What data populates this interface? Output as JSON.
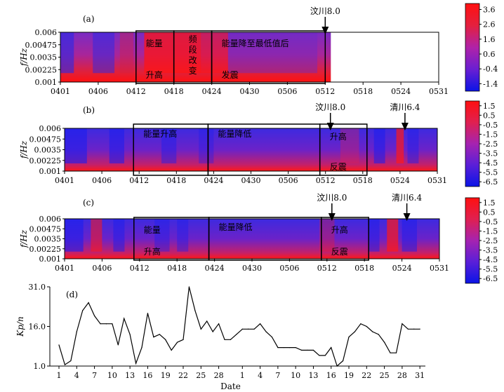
{
  "chart_data": [
    {
      "type": "heatmap",
      "panel_label": "(a)",
      "ylabel": "f/Hz",
      "yticks": [
        "0.006",
        "0.00475",
        "0.0035",
        "0.00225",
        "0.001"
      ],
      "xticks": [
        "0401",
        "0406",
        "0412",
        "0418",
        "0424",
        "0430",
        "0506",
        "0512",
        "0518",
        "0524",
        "0531"
      ],
      "colorbar": {
        "ticks": [
          "3.6",
          "2.6",
          "1.6",
          "0.6",
          "-0.4",
          "-1.4"
        ],
        "min": -1.9,
        "max": 4.0,
        "colors": [
          "#0a14e6",
          "#6a1fd2",
          "#b022a8",
          "#e4203e",
          "#ff1010"
        ]
      },
      "data_end_tick": "0512",
      "boxes": [
        {
          "from": "0412",
          "to": "0418",
          "lines": [
            "能量",
            "升高"
          ]
        },
        {
          "from": "0418",
          "to": "0424",
          "lines": [
            "频",
            "段",
            "改",
            "变"
          ]
        },
        {
          "from": "0424",
          "to": "0512",
          "lines": [
            "能量降至最低值后",
            "发震"
          ]
        }
      ],
      "annotations": [
        {
          "text": "汶川8.0",
          "at": "0512"
        }
      ]
    },
    {
      "type": "heatmap",
      "panel_label": "(b)",
      "ylabel": "f/Hz",
      "yticks": [
        "0.006",
        "0.00475",
        "0.0035",
        "0.00225",
        "0.001"
      ],
      "xticks": [
        "0401",
        "0406",
        "0412",
        "0418",
        "0424",
        "0430",
        "0506",
        "0512",
        "0518",
        "0524",
        "0531"
      ],
      "colorbar": {
        "ticks": [
          "1.5",
          "0.5",
          "-0.5",
          "-1.5",
          "-2.5",
          "-3.5",
          "-4.5",
          "-5.5",
          "-6.5"
        ],
        "min": -7.0,
        "max": 2.0,
        "colors": [
          "#0a14e6",
          "#5a1fd8",
          "#a523b0",
          "#e02050",
          "#ff1010"
        ]
      },
      "boxes": [
        {
          "from": "0412",
          "to": "0424",
          "lines": [
            "能量升高"
          ]
        },
        {
          "from": "0424",
          "to": "0512",
          "lines": [
            "能量降低"
          ]
        },
        {
          "from": "0512",
          "to": "0518",
          "lines": [
            "升高",
            "反震"
          ]
        }
      ],
      "annotations": [
        {
          "text": "汶川8.0",
          "at": "0512"
        },
        {
          "text": "清川6.4",
          "at": "0524"
        }
      ]
    },
    {
      "type": "heatmap",
      "panel_label": "(c)",
      "ylabel": "f/Hz",
      "yticks": [
        "0.006",
        "0.00475",
        "0.0035",
        "0.00225",
        "0.001"
      ],
      "xticks": [
        "0401",
        "0406",
        "0412",
        "0418",
        "0424",
        "0430",
        "0506",
        "0512",
        "0518",
        "0524",
        "0531"
      ],
      "colorbar": {
        "ticks": [
          "1.5",
          "0.5",
          "-0.5",
          "-1.5",
          "-2.5",
          "-3.5",
          "-4.5",
          "-5.5",
          "-6.5"
        ],
        "min": -7.0,
        "max": 2.0,
        "colors": [
          "#0a14e6",
          "#5a1fd8",
          "#a523b0",
          "#e02050",
          "#ff1010"
        ]
      },
      "boxes": [
        {
          "from": "0412",
          "to": "0424",
          "lines": [
            "能量",
            "升高"
          ]
        },
        {
          "from": "0424",
          "to": "0512",
          "lines": [
            "能量降低"
          ]
        },
        {
          "from": "0512",
          "to": "0518",
          "lines": [
            "升高",
            "反震"
          ]
        }
      ],
      "annotations": [
        {
          "text": "汶川8.0",
          "at": "0512"
        },
        {
          "text": "清川6.4",
          "at": "0524"
        }
      ]
    },
    {
      "type": "line",
      "panel_label": "(d)",
      "ylabel": "Kp/n",
      "xlabel": "Date",
      "yticks": [
        "31.0",
        "16.0",
        "1.0"
      ],
      "ylim": [
        1,
        31
      ],
      "xticks": [
        "1",
        "4",
        "7",
        "10",
        "13",
        "16",
        "19",
        "22",
        "25",
        "28",
        "1",
        "4",
        "7",
        "10",
        "13",
        "16",
        "19",
        "22",
        "25",
        "28",
        "31"
      ],
      "x": [
        1,
        2,
        3,
        4,
        5,
        6,
        7,
        8,
        9,
        10,
        11,
        12,
        13,
        14,
        15,
        16,
        17,
        18,
        19,
        20,
        21,
        22,
        23,
        24,
        25,
        26,
        27,
        28,
        29,
        30,
        31,
        32,
        33,
        34,
        35,
        36,
        37,
        38,
        39,
        40,
        41,
        42,
        43,
        44,
        45,
        46,
        47,
        48,
        49,
        50,
        51,
        52,
        53,
        54,
        55,
        56,
        57,
        58,
        59,
        60,
        61,
        62
      ],
      "values": [
        9,
        1.5,
        3,
        14,
        22,
        25,
        20,
        17,
        17,
        17,
        9,
        19,
        13,
        2,
        8,
        21,
        12,
        13,
        11,
        7,
        10,
        11,
        31,
        22,
        15,
        18,
        14,
        17,
        11,
        11,
        13,
        15,
        15,
        15,
        17,
        14,
        12,
        8,
        8,
        8,
        8,
        7,
        7,
        7,
        5,
        5,
        8,
        1,
        3,
        12,
        14,
        17,
        16,
        14,
        13,
        10,
        6,
        6,
        17,
        15,
        15,
        15
      ]
    }
  ]
}
